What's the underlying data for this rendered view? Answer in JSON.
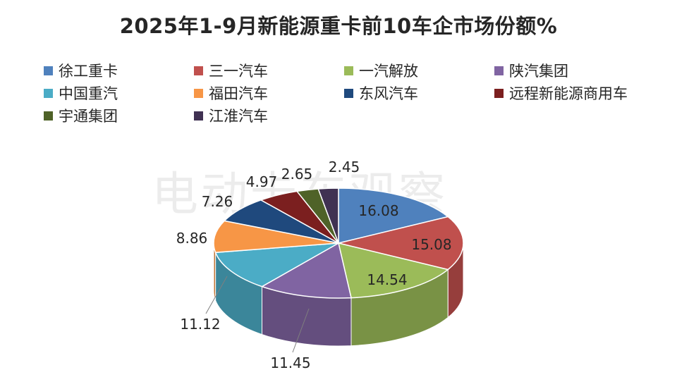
{
  "chart_data": {
    "type": "pie",
    "title": "2025年1-9月新能源重卡前10车企市场份额%",
    "legend_position": "top",
    "slices": [
      {
        "label": "徐工重卡",
        "value": 16.08,
        "value_label": "16.08",
        "color": "#4F81BD"
      },
      {
        "label": "三一汽车",
        "value": 15.08,
        "value_label": "15.08",
        "color": "#C0504D"
      },
      {
        "label": "一汽解放",
        "value": 14.54,
        "value_label": "14.54",
        "color": "#9BBB59"
      },
      {
        "label": "陕汽集团",
        "value": 11.45,
        "value_label": "11.45",
        "color": "#8064A2"
      },
      {
        "label": "中国重汽",
        "value": 11.12,
        "value_label": "11.12",
        "color": "#4BACC6"
      },
      {
        "label": "福田汽车",
        "value": 8.86,
        "value_label": "8.86",
        "color": "#F79646"
      },
      {
        "label": "东风汽车",
        "value": 7.26,
        "value_label": "7.26",
        "color": "#1F497D"
      },
      {
        "label": "远程新能源商用车",
        "value": 4.97,
        "value_label": "4.97",
        "color": "#7B1F1F"
      },
      {
        "label": "宇通集团",
        "value": 2.65,
        "value_label": "2.65",
        "color": "#4F6228"
      },
      {
        "label": "江淮汽车",
        "value": 2.45,
        "value_label": "2.45",
        "color": "#403152"
      }
    ]
  },
  "watermark": "电动卡车观察"
}
